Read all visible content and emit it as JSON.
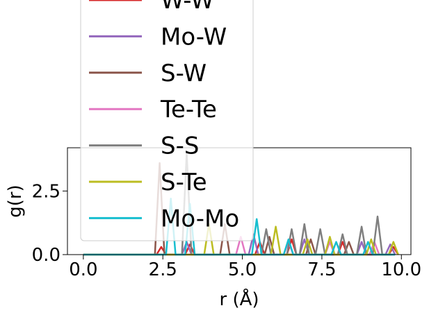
{
  "chart_data": {
    "type": "line",
    "xlabel": "r (Å)",
    "ylabel": "g(r)",
    "xlim": [
      -0.5,
      10.3
    ],
    "ylim": [
      0,
      4.2
    ],
    "xticks": [
      0.0,
      2.5,
      5.0,
      7.5,
      10.0
    ],
    "xtick_labels": [
      "0.0",
      "2.5",
      "5.0",
      "7.5",
      "10.0"
    ],
    "yticks": [
      0.0,
      2.5
    ],
    "ytick_labels": [
      "0.0",
      "2.5"
    ],
    "grid": false,
    "legend": {
      "placement": "upper-left, extending above axes"
    },
    "series": [
      {
        "name": "W-W",
        "color": "#d62728",
        "x": [
          0,
          2.3,
          2.45,
          2.6,
          3.2,
          3.35,
          3.5,
          5.4,
          5.55,
          5.7,
          6.4,
          6.55,
          6.7,
          8.0,
          8.15,
          8.3,
          9.6,
          9.75,
          9.9
        ],
        "y": [
          0,
          0,
          0.3,
          0,
          0,
          0.4,
          0,
          0,
          0.5,
          0,
          0,
          0.6,
          0,
          0,
          0.5,
          0,
          0,
          0.3,
          0
        ]
      },
      {
        "name": "Mo-W",
        "color": "#9467bd",
        "x": [
          0,
          3.1,
          3.25,
          3.4,
          5.2,
          5.35,
          5.5,
          6.8,
          6.95,
          7.1,
          8.6,
          8.75,
          8.9,
          9.5,
          9.65,
          9.8
        ],
        "y": [
          0,
          0,
          0.5,
          0,
          0,
          0.8,
          0,
          0,
          0.6,
          0,
          0,
          0.5,
          0,
          0,
          0.4,
          0
        ]
      },
      {
        "name": "S-W",
        "color": "#8c564b",
        "x": [
          0,
          2.25,
          2.4,
          2.55,
          4.3,
          4.45,
          4.6,
          5.7,
          5.85,
          6.0,
          7.0,
          7.15,
          7.3,
          8.2,
          8.35,
          8.5,
          9.7
        ],
        "y": [
          0,
          0,
          3.6,
          0,
          0,
          1.2,
          0,
          0,
          0.7,
          0,
          0,
          0.6,
          0,
          0,
          0.5,
          0,
          0
        ]
      },
      {
        "name": "Te-Te",
        "color": "#e377c2",
        "x": [
          0,
          4.8,
          4.95,
          5.1,
          6.3,
          6.45,
          6.6,
          7.6,
          7.75,
          7.9,
          9.0,
          9.15,
          9.3,
          9.7
        ],
        "y": [
          0,
          0,
          0.7,
          0,
          0,
          0.5,
          0,
          0,
          0.5,
          0,
          0,
          0.5,
          0,
          0
        ]
      },
      {
        "name": "S-S",
        "color": "#7f7f7f",
        "x": [
          0,
          3.1,
          3.25,
          3.4,
          5.6,
          5.75,
          5.9,
          6.4,
          6.55,
          6.7,
          6.8,
          6.95,
          7.1,
          7.3,
          7.45,
          7.6,
          8.0,
          8.15,
          8.3,
          8.6,
          8.75,
          8.9,
          9.1,
          9.25,
          9.4,
          9.8
        ],
        "y": [
          0,
          0,
          4.0,
          0,
          0,
          1.0,
          0,
          0,
          1.0,
          0,
          0,
          1.2,
          0,
          0,
          1.0,
          0,
          0,
          0.8,
          0,
          0,
          1.1,
          0,
          0,
          1.5,
          0,
          0
        ]
      },
      {
        "name": "S-Te",
        "color": "#bcbd22",
        "x": [
          0,
          3.8,
          3.95,
          4.1,
          5.9,
          6.05,
          6.2,
          6.9,
          7.05,
          7.2,
          7.6,
          7.75,
          7.9,
          8.9,
          9.05,
          9.2,
          9.6,
          9.75,
          9.9
        ],
        "y": [
          0,
          0,
          1.2,
          0,
          0,
          1.1,
          0,
          0,
          0.6,
          0,
          0,
          0.7,
          0,
          0,
          0.6,
          0,
          0,
          0.5,
          0
        ]
      },
      {
        "name": "Mo-Mo",
        "color": "#17becf",
        "x": [
          0,
          2.6,
          2.75,
          2.9,
          3.2,
          3.35,
          3.5,
          5.3,
          5.45,
          5.6,
          6.3,
          6.45,
          6.6,
          7.8,
          7.95,
          8.1,
          8.8,
          8.95,
          9.1,
          9.8
        ],
        "y": [
          0,
          0,
          2.2,
          0,
          0,
          2.0,
          0,
          0,
          1.4,
          0,
          0,
          0.6,
          0,
          0,
          0.5,
          0,
          0,
          0.5,
          0,
          0
        ]
      }
    ]
  }
}
